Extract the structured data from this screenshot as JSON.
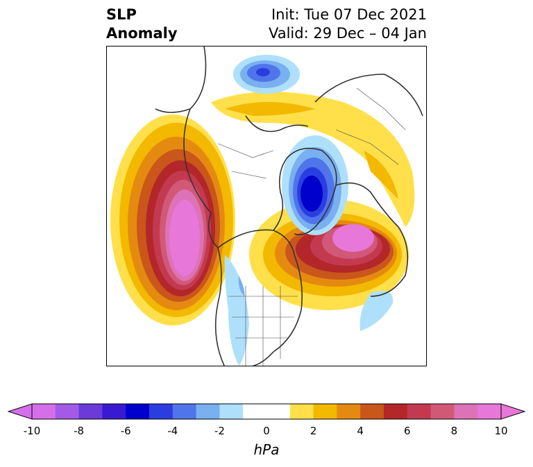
{
  "title": {
    "variable": "SLP",
    "subtitle": "Anomaly",
    "init": "Init: Tue 07 Dec 2021",
    "valid": "Valid: 29 Dec – 04 Jan"
  },
  "colorbar": {
    "units": "hPa",
    "levels": [
      -10,
      -9,
      -8,
      -7,
      -6,
      -5,
      -4,
      -3,
      -2,
      -1,
      1,
      2,
      3,
      4,
      5,
      6,
      7,
      8,
      9,
      10
    ],
    "tick_labels": [
      "-10",
      "-8",
      "-6",
      "-4",
      "-2",
      "0",
      "2",
      "4",
      "6",
      "8",
      "10"
    ],
    "colors": [
      "#d36fe8",
      "#a35ae6",
      "#6b3ad9",
      "#3a1ad0",
      "#0000cc",
      "#2a3ee0",
      "#5074ea",
      "#7aaff0",
      "#aee0fb",
      "#ffffff",
      "#ffffff",
      "#ffe04a",
      "#f3b800",
      "#e58a10",
      "#c9561a",
      "#b3262a",
      "#c33a50",
      "#d25878",
      "#dd72b6",
      "#e777d8"
    ],
    "extend_low_color": "#d36fe8",
    "extend_high_color": "#e777d8"
  },
  "map": {
    "projection": "polar stereographic (Northern Hemisphere)",
    "features": [
      "coastlines",
      "country borders",
      "US states"
    ]
  }
}
